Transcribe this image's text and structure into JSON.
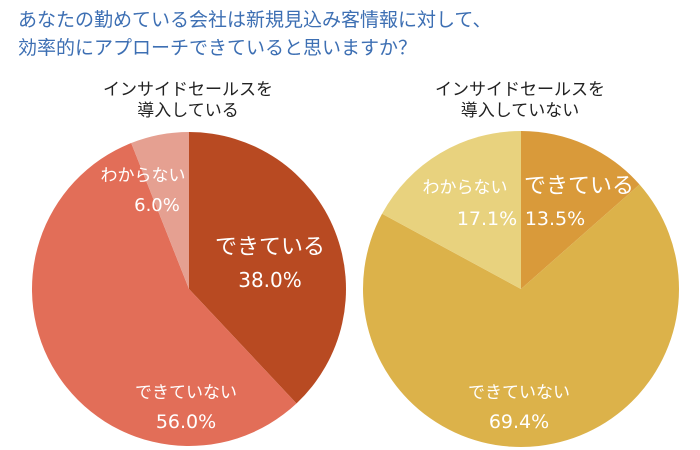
{
  "question": {
    "line1": "あなたの勤めている会社は新規見込み客情報に対して、",
    "line2": "効率的にアプローチできていると思いますか？"
  },
  "chart_data": [
    {
      "type": "pie",
      "title_lines": [
        "インサイドセールスを",
        "導入している"
      ],
      "slices": [
        {
          "label": "できている",
          "value": 38.0,
          "display": "38.0%",
          "color": "#b84a22"
        },
        {
          "label": "できていない",
          "value": 56.0,
          "display": "56.0%",
          "color": "#e26e58"
        },
        {
          "label": "わからない",
          "value": 6.0,
          "display": "6.0%",
          "color": "#e5a091"
        }
      ]
    },
    {
      "type": "pie",
      "title_lines": [
        "インサイドセールスを",
        "導入していない"
      ],
      "slices": [
        {
          "label": "できている",
          "value": 13.5,
          "display": "13.5%",
          "color": "#d99a3a"
        },
        {
          "label": "できていない",
          "value": 69.4,
          "display": "69.4%",
          "color": "#dcb24a"
        },
        {
          "label": "わからない",
          "value": 17.1,
          "display": "17.1%",
          "color": "#e8d27e"
        }
      ]
    }
  ]
}
